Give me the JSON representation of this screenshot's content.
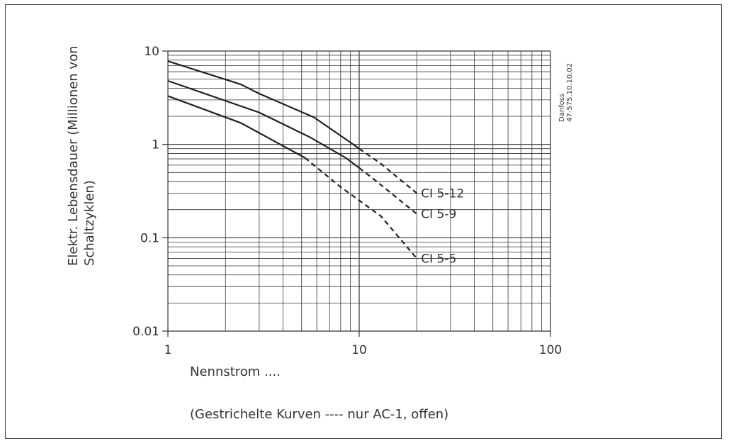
{
  "chart_data": {
    "type": "line",
    "xscale": "log",
    "yscale": "log",
    "xlim": [
      1,
      100
    ],
    "ylim": [
      0.01,
      10
    ],
    "x_ticks": [
      "1",
      "10",
      "100"
    ],
    "y_ticks": [
      "10",
      "1",
      "0.1",
      "0.01"
    ],
    "ylabel_line1": "Elektr. Lebensdauer (Millionen von",
    "ylabel_line2": "Schaltzyklen)",
    "xlabel": "Nennstrom ....",
    "note": "(Gestrichelte Kurven  ---- nur AC-1, offen)",
    "side_text_line1": "Danfoss",
    "side_text_line2": "47-575.10.10.02",
    "series": [
      {
        "name": "CI 5-12",
        "solid": [
          [
            1,
            7.8
          ],
          [
            2.4,
            4.4
          ],
          [
            3,
            3.5
          ],
          [
            5.8,
            1.95
          ],
          [
            9,
            1.05
          ],
          [
            10,
            0.9
          ]
        ],
        "dashed": [
          [
            10,
            0.9
          ],
          [
            13,
            0.62
          ],
          [
            20,
            0.3
          ]
        ]
      },
      {
        "name": "CI 5-9",
        "solid": [
          [
            1,
            4.8
          ],
          [
            3,
            2.2
          ],
          [
            5.5,
            1.2
          ],
          [
            8.5,
            0.72
          ],
          [
            10,
            0.56
          ]
        ],
        "dashed": [
          [
            10,
            0.56
          ],
          [
            12,
            0.42
          ],
          [
            20,
            0.18
          ]
        ]
      },
      {
        "name": "CI 5-5",
        "solid": [
          [
            1,
            3.3
          ],
          [
            2.4,
            1.7
          ],
          [
            5.2,
            0.72
          ]
        ],
        "dashed": [
          [
            5.2,
            0.72
          ],
          [
            8,
            0.35
          ],
          [
            13,
            0.17
          ],
          [
            20,
            0.06
          ]
        ]
      }
    ]
  }
}
